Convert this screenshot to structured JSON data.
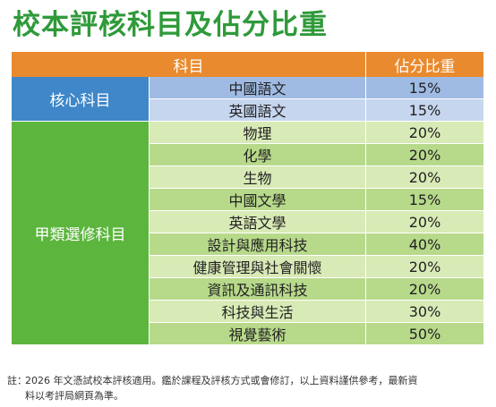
{
  "title": "校本評核科目及佔分比重",
  "table": {
    "headers": [
      "科目",
      "佔分比重"
    ],
    "groups": [
      {
        "label": "核心科目",
        "rows": [
          {
            "subject": "中國語文",
            "weight": "15%"
          },
          {
            "subject": "英國語文",
            "weight": "15%"
          }
        ]
      },
      {
        "label": "甲類選修科目",
        "rows": [
          {
            "subject": "物理",
            "weight": "20%"
          },
          {
            "subject": "化學",
            "weight": "20%"
          },
          {
            "subject": "生物",
            "weight": "20%"
          },
          {
            "subject": "中國文學",
            "weight": "15%"
          },
          {
            "subject": "英語文學",
            "weight": "20%"
          },
          {
            "subject": "設計與應用科技",
            "weight": "40%"
          },
          {
            "subject": "健康管理與社會關懷",
            "weight": "20%"
          },
          {
            "subject": "資訊及通訊科技",
            "weight": "20%"
          },
          {
            "subject": "科技與生活",
            "weight": "30%"
          },
          {
            "subject": "視覺藝術",
            "weight": "50%"
          }
        ]
      }
    ]
  },
  "note": {
    "lead": "註：",
    "line1": "2026 年文憑試校本評核適用。鑑於課程及評核方式或會修訂，以上資料謹供參考，最新資",
    "line2": "料以考評局網頁為準。"
  },
  "colors": {
    "title": "#2f9a3a",
    "header": "#e98a2e",
    "core_label": "#3f87c8",
    "elective_label": "#5cb53d",
    "core_row_dark": "#9fbbe3",
    "core_row_light": "#c6d6ef",
    "elective_row_dark": "#b7d98a",
    "elective_row_light": "#d8eab6"
  }
}
